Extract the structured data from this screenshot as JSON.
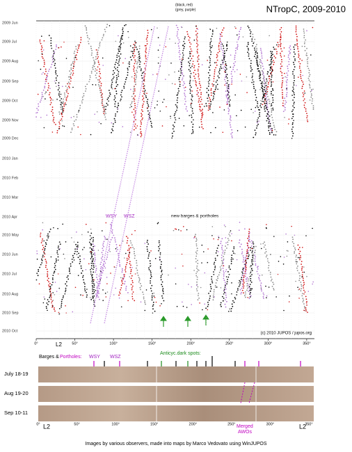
{
  "figure": {
    "title": "NTropC, 2009-2010",
    "legend": [
      "(black, red)",
      "(grey, purple)"
    ],
    "y_labels": [
      "2009 Jun",
      "2009 Jul",
      "2009 Aug",
      "2009 Sep",
      "2009 Oct",
      "2009 Nov",
      "2009 Dec",
      "2010 Jan",
      "2010 Feb",
      "2010 Mar",
      "2010 Apr",
      "2010 May",
      "2010 Jun",
      "2010 Jul",
      "2010 Aug",
      "2010 Sep",
      "2010 Oct"
    ],
    "x_labels": [
      "0°",
      "50°",
      "100°",
      "150°",
      "200°",
      "250°",
      "300°",
      "350°"
    ],
    "x_marker": "L2",
    "annotations": {
      "wsy": "WSY",
      "wsz": "WSZ",
      "new": "new barges & portholes",
      "credit": "(c) 2010 JUPOS / jupos.org"
    },
    "maps": {
      "barges_label": "Barges &",
      "portholes_label": "Portholes:",
      "wsy": "WSY",
      "wsz": "WSZ",
      "anticyc": "Anticyc.dark spots:",
      "rows": [
        "July 18-19",
        "Aug 19-20",
        "Sep 10-11"
      ],
      "merged": "Merged",
      "awos": "AWOs",
      "l2_left": "L2",
      "l2_right": "L2"
    },
    "caption": "Images by various observers, made into maps by Marco Vedovato using WinJUPOS"
  }
}
